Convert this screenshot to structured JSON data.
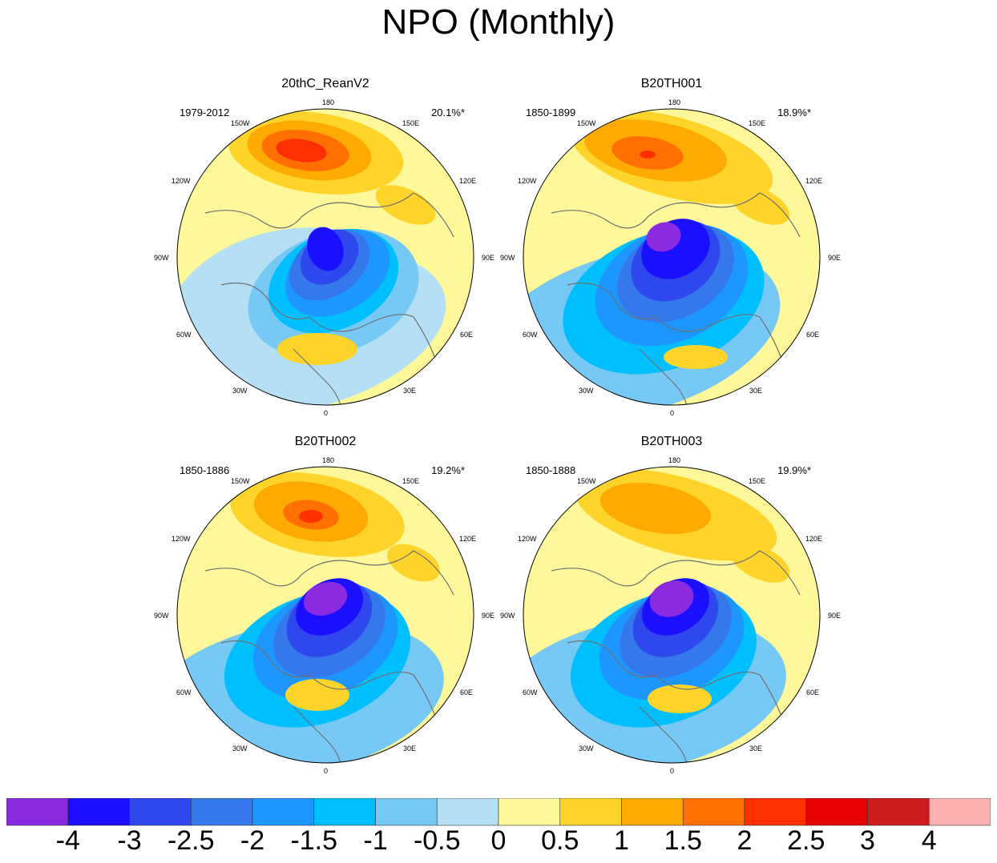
{
  "title": "NPO (Monthly)",
  "panels": [
    {
      "name": "20thC_ReanV2",
      "years": "1979-2012",
      "variance": "20.1%*"
    },
    {
      "name": "B20TH001",
      "years": "1850-1899",
      "variance": "18.9%*"
    },
    {
      "name": "B20TH002",
      "years": "1850-1886",
      "variance": "19.2%*"
    },
    {
      "name": "B20TH003",
      "years": "1850-1888",
      "variance": "19.9%*"
    }
  ],
  "longitudes": {
    "top": "180",
    "bottom": "0",
    "w150": "150W",
    "e150": "150E",
    "w120": "120W",
    "e120": "120E",
    "w90": "90W",
    "e90": "90E",
    "w60": "60W",
    "e60": "60E",
    "w30": "30W",
    "e30": "30E"
  },
  "colorbar": {
    "labels": [
      "-4",
      "-3",
      "-2.5",
      "-2",
      "-1.5",
      "-1",
      "-0.5",
      "0",
      "0.5",
      "1",
      "1.5",
      "2",
      "2.5",
      "3",
      "4"
    ],
    "colors": [
      "#8a2be2",
      "#1a0fff",
      "#2e48ee",
      "#3478ec",
      "#1e96ff",
      "#00bfff",
      "#76c8f5",
      "#b4dff4",
      "#fff89a",
      "#ffd42a",
      "#ffaa00",
      "#ff7000",
      "#ff3000",
      "#e50000",
      "#cc1c1c",
      "#ffb0b0"
    ]
  },
  "chart_data": {
    "type": "heatmap",
    "description": "North Pacific Oscillation EOF pattern, polar stereographic projection of the Northern Hemisphere",
    "panel_patterns": [
      {
        "panel": "20thC_ReanV2",
        "north_pacific_max": 2.0,
        "arctic_min": -3.0,
        "europe_max": 1.0
      },
      {
        "panel": "B20TH001",
        "north_pacific_max": 2.0,
        "arctic_min": -4.0,
        "europe_max": 1.0
      },
      {
        "panel": "B20TH002",
        "north_pacific_max": 2.0,
        "arctic_min": -4.0,
        "europe_max": 1.0
      },
      {
        "panel": "B20TH003",
        "north_pacific_max": 1.5,
        "arctic_min": -4.0,
        "europe_max": 1.0
      }
    ],
    "contour_levels": [
      -4,
      -3,
      -2.5,
      -2,
      -1.5,
      -1,
      -0.5,
      0,
      0.5,
      1,
      1.5,
      2,
      2.5,
      3,
      4
    ]
  }
}
